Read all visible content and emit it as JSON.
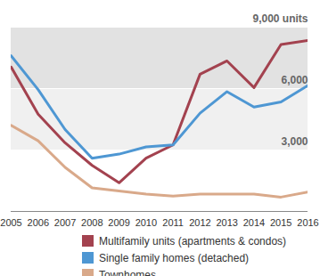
{
  "chart_data": {
    "type": "line",
    "x": [
      2005,
      2006,
      2007,
      2008,
      2009,
      2010,
      2011,
      2012,
      2013,
      2014,
      2015,
      2016
    ],
    "xlim": [
      2005,
      2016
    ],
    "xticks": [
      2005,
      2006,
      2007,
      2008,
      2009,
      2010,
      2011,
      2012,
      2013,
      2014,
      2015,
      2016
    ],
    "ylim": [
      0,
      9000
    ],
    "yticks": [
      {
        "value": 3000,
        "label": "3,000"
      },
      {
        "value": 6000,
        "label": "6,000"
      },
      {
        "value": 9000,
        "label": "9,000 units"
      }
    ],
    "grid": true,
    "legend": "bottom",
    "series": [
      {
        "name": "Multifamily units (apartments & condos)",
        "color": "#a3424f",
        "values": [
          7050,
          4750,
          3350,
          2250,
          1400,
          2600,
          3250,
          6700,
          7350,
          6050,
          8150,
          8350
        ]
      },
      {
        "name": "Single family homes (detached)",
        "color": "#4e97d3",
        "values": [
          7600,
          5950,
          4000,
          2600,
          2800,
          3150,
          3250,
          4800,
          5850,
          5100,
          5350,
          6150
        ]
      },
      {
        "name": "Townhomes",
        "color": "#d9a98a",
        "values": [
          4200,
          3450,
          2150,
          1150,
          1000,
          850,
          750,
          850,
          850,
          850,
          700,
          950
        ]
      }
    ]
  }
}
